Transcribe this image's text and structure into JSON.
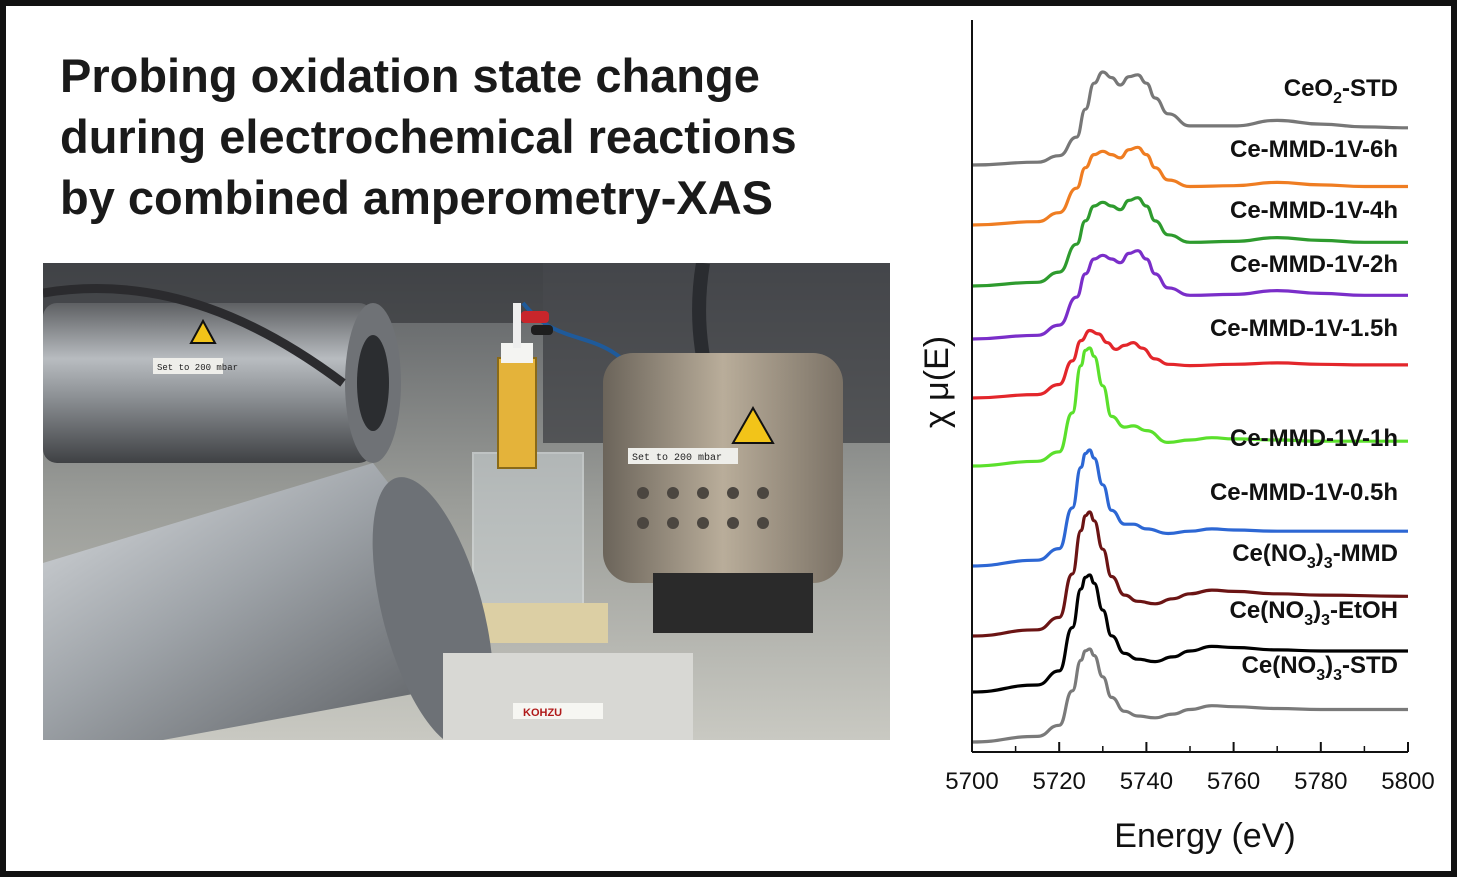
{
  "headline": {
    "lines": [
      "Probing oxidation state change",
      "during electrochemical reactions",
      "by combined amperometry-XAS"
    ]
  },
  "photo": {
    "description_icon": "experimental-setup-photo",
    "labels": {
      "tag_left": "Set to 200 mbar",
      "tag_right": "Set to 200 mbar",
      "stage_brand": "KOHZU"
    }
  },
  "chart_data": {
    "type": "line",
    "title": "",
    "xlabel": "Energy (eV)",
    "ylabel": "χ μ(E)",
    "xlim": [
      5700,
      5800
    ],
    "xticks": [
      5700,
      5720,
      5740,
      5760,
      5780,
      5800
    ],
    "y_tick_labels": false,
    "grid": false,
    "legend": "labels above each curve, right-aligned",
    "series": [
      {
        "name": "CeO2-STD",
        "label_main": "CeO",
        "label_sub": "2",
        "label_tail": "-STD",
        "color": "#777777",
        "shape": "ceo2",
        "x": [
          5700,
          5715,
          5720,
          5724,
          5726,
          5728,
          5730,
          5732,
          5734,
          5736,
          5738,
          5740,
          5742,
          5745,
          5750,
          5760,
          5770,
          5780,
          5790,
          5800
        ],
        "y": [
          0.0,
          0.03,
          0.1,
          0.3,
          0.6,
          0.88,
          1.0,
          0.94,
          0.86,
          0.95,
          0.97,
          0.88,
          0.72,
          0.55,
          0.42,
          0.42,
          0.48,
          0.44,
          0.41,
          0.4
        ]
      },
      {
        "name": "Ce-MMD-1V-6h",
        "color": "#ef7d22",
        "shape": "mixed",
        "y_scale": 0.88,
        "x": [
          5700,
          5715,
          5720,
          5724,
          5726,
          5728,
          5730,
          5732,
          5734,
          5736,
          5738,
          5740,
          5742,
          5745,
          5750,
          5760,
          5770,
          5780,
          5790,
          5800
        ],
        "y": [
          0.0,
          0.04,
          0.15,
          0.45,
          0.7,
          0.86,
          0.9,
          0.86,
          0.82,
          0.92,
          0.95,
          0.86,
          0.7,
          0.55,
          0.47,
          0.48,
          0.52,
          0.49,
          0.47,
          0.47
        ]
      },
      {
        "name": "Ce-MMD-1V-4h",
        "color": "#2e9b2e",
        "shape": "mixed",
        "x": [
          5700,
          5715,
          5720,
          5724,
          5726,
          5728,
          5730,
          5732,
          5734,
          5736,
          5738,
          5740,
          5742,
          5745,
          5750,
          5760,
          5770,
          5780,
          5790,
          5800
        ],
        "y": [
          0.0,
          0.04,
          0.15,
          0.45,
          0.7,
          0.86,
          0.9,
          0.86,
          0.82,
          0.92,
          0.95,
          0.86,
          0.7,
          0.55,
          0.47,
          0.48,
          0.52,
          0.49,
          0.47,
          0.47
        ]
      },
      {
        "name": "Ce-MMD-1V-2h",
        "color": "#7a2ec9",
        "shape": "mixed",
        "x": [
          5700,
          5715,
          5720,
          5724,
          5726,
          5728,
          5730,
          5732,
          5734,
          5736,
          5738,
          5740,
          5742,
          5745,
          5750,
          5760,
          5770,
          5780,
          5790,
          5800
        ],
        "y": [
          0.0,
          0.04,
          0.15,
          0.45,
          0.7,
          0.86,
          0.9,
          0.86,
          0.82,
          0.92,
          0.95,
          0.86,
          0.7,
          0.55,
          0.47,
          0.48,
          0.52,
          0.49,
          0.47,
          0.47
        ]
      },
      {
        "name": "Ce-MMD-1V-1.5h",
        "color": "#e3262b",
        "shape": "mixed",
        "y_scale": 0.75,
        "x": [
          5700,
          5715,
          5720,
          5723,
          5725,
          5727,
          5729,
          5731,
          5733,
          5735,
          5737,
          5739,
          5742,
          5745,
          5750,
          5760,
          5770,
          5780,
          5790,
          5800
        ],
        "y": [
          0.0,
          0.05,
          0.2,
          0.55,
          0.85,
          1.0,
          0.95,
          0.82,
          0.72,
          0.78,
          0.82,
          0.74,
          0.58,
          0.5,
          0.48,
          0.5,
          0.52,
          0.5,
          0.49,
          0.49
        ]
      },
      {
        "name": "Ce-MMD-1V-1h",
        "color": "#5be02c",
        "shape": "ce3",
        "x": [
          5700,
          5715,
          5720,
          5723,
          5725,
          5726,
          5727,
          5728,
          5730,
          5732,
          5735,
          5737,
          5740,
          5745,
          5750,
          5755,
          5760,
          5770,
          5780,
          5800
        ],
        "y": [
          0.0,
          0.04,
          0.12,
          0.45,
          0.85,
          0.98,
          1.0,
          0.93,
          0.68,
          0.42,
          0.33,
          0.34,
          0.3,
          0.2,
          0.22,
          0.24,
          0.23,
          0.22,
          0.21,
          0.21
        ]
      },
      {
        "name": "Ce-MMD-1V-0.5h",
        "color": "#2d67d4",
        "shape": "ce3",
        "x": [
          5700,
          5715,
          5720,
          5723,
          5725,
          5726,
          5727,
          5728,
          5730,
          5732,
          5735,
          5737,
          5740,
          5745,
          5750,
          5755,
          5760,
          5770,
          5780,
          5800
        ],
        "y": [
          0.0,
          0.05,
          0.15,
          0.5,
          0.85,
          0.97,
          1.0,
          0.93,
          0.7,
          0.48,
          0.36,
          0.36,
          0.32,
          0.28,
          0.3,
          0.32,
          0.31,
          0.3,
          0.3,
          0.3
        ]
      },
      {
        "name": "Ce(NO3)3-MMD",
        "label_main": "Ce(NO",
        "label_sub": "3",
        "label_tail": ")",
        "label_sub2": "3",
        "label_tail2": "-MMD",
        "color": "#6b1414",
        "shape": "ce3",
        "x": [
          5700,
          5715,
          5720,
          5723,
          5725,
          5726,
          5727,
          5728,
          5730,
          5732,
          5735,
          5738,
          5742,
          5746,
          5750,
          5755,
          5760,
          5770,
          5780,
          5800
        ],
        "y": [
          0.0,
          0.05,
          0.15,
          0.5,
          0.85,
          0.97,
          1.0,
          0.93,
          0.7,
          0.48,
          0.33,
          0.28,
          0.26,
          0.3,
          0.34,
          0.37,
          0.36,
          0.34,
          0.33,
          0.32
        ]
      },
      {
        "name": "Ce(NO3)3-EtOH",
        "label_main": "Ce(NO",
        "label_sub": "3",
        "label_tail": ")",
        "label_sub2": "3",
        "label_tail2": "-EtOH",
        "color": "#000000",
        "shape": "ce3",
        "x": [
          5700,
          5715,
          5720,
          5723,
          5725,
          5726,
          5727,
          5728,
          5730,
          5732,
          5735,
          5738,
          5742,
          5746,
          5750,
          5755,
          5760,
          5770,
          5780,
          5800
        ],
        "y": [
          0.0,
          0.06,
          0.18,
          0.55,
          0.88,
          0.98,
          1.0,
          0.93,
          0.7,
          0.48,
          0.33,
          0.28,
          0.26,
          0.3,
          0.35,
          0.39,
          0.38,
          0.36,
          0.35,
          0.35
        ]
      },
      {
        "name": "Ce(NO3)3-STD",
        "label_main": "Ce(NO",
        "label_sub": "3",
        "label_tail": ")",
        "label_sub2": "3",
        "label_tail2": "-STD",
        "color": "#7a7a7a",
        "shape": "ce3",
        "x": [
          5700,
          5715,
          5720,
          5723,
          5725,
          5726,
          5727,
          5728,
          5730,
          5732,
          5735,
          5738,
          5742,
          5746,
          5750,
          5755,
          5760,
          5770,
          5780,
          5800
        ],
        "y": [
          0.0,
          0.06,
          0.18,
          0.55,
          0.88,
          0.98,
          1.0,
          0.93,
          0.7,
          0.48,
          0.33,
          0.28,
          0.26,
          0.3,
          0.35,
          0.39,
          0.38,
          0.36,
          0.35,
          0.35
        ]
      }
    ]
  }
}
